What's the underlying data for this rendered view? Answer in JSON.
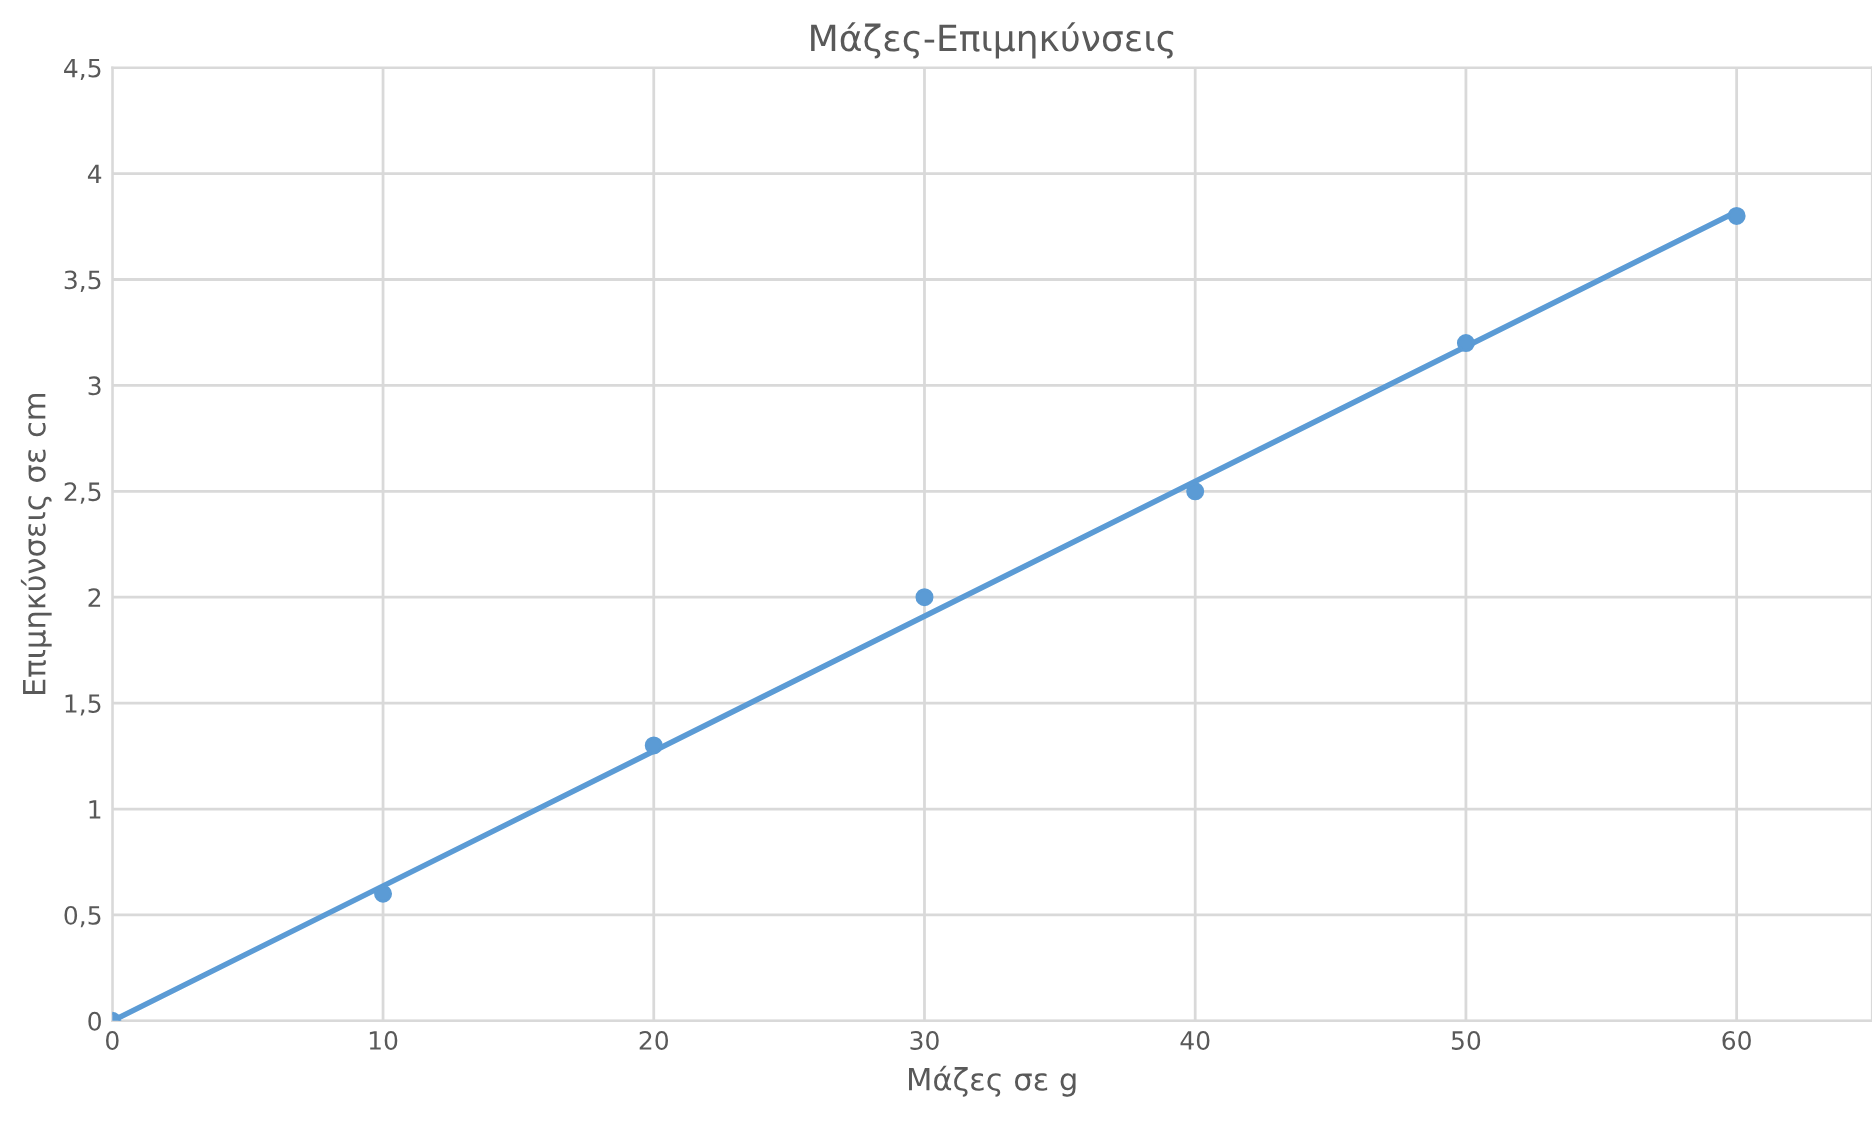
{
  "chart_data": {
    "type": "scatter",
    "title": "Μάζες-Επιμηκύνσεις",
    "xlabel": "Μάζες σε g",
    "ylabel": "Επιμηκύνσεις σε cm",
    "x": [
      0,
      10,
      20,
      30,
      40,
      50,
      60
    ],
    "series": [
      {
        "marker": "circle",
        "color": "#5b9bd5",
        "values": [
          0,
          0.6,
          1.3,
          2,
          2.5,
          3.2,
          3.8
        ]
      },
      {
        "type": "line",
        "marker": "none",
        "color": "#5b9bd5",
        "x": [
          0,
          60
        ],
        "values": [
          0,
          3.82
        ]
      }
    ],
    "xlim": [
      0,
      65
    ],
    "xticks": [
      0,
      10,
      20,
      30,
      40,
      50,
      60
    ],
    "ylim": [
      0,
      4.5
    ],
    "yticks": [
      0,
      {
        "value": 0.5,
        "label": "0,5"
      },
      1,
      {
        "value": 1.5,
        "label": "1,5"
      },
      2,
      {
        "value": 2.5,
        "label": "2,5"
      },
      3,
      {
        "value": 3.5,
        "label": "3,5"
      },
      4,
      {
        "value": 4.5,
        "label": "4,5"
      }
    ],
    "grid": true
  }
}
